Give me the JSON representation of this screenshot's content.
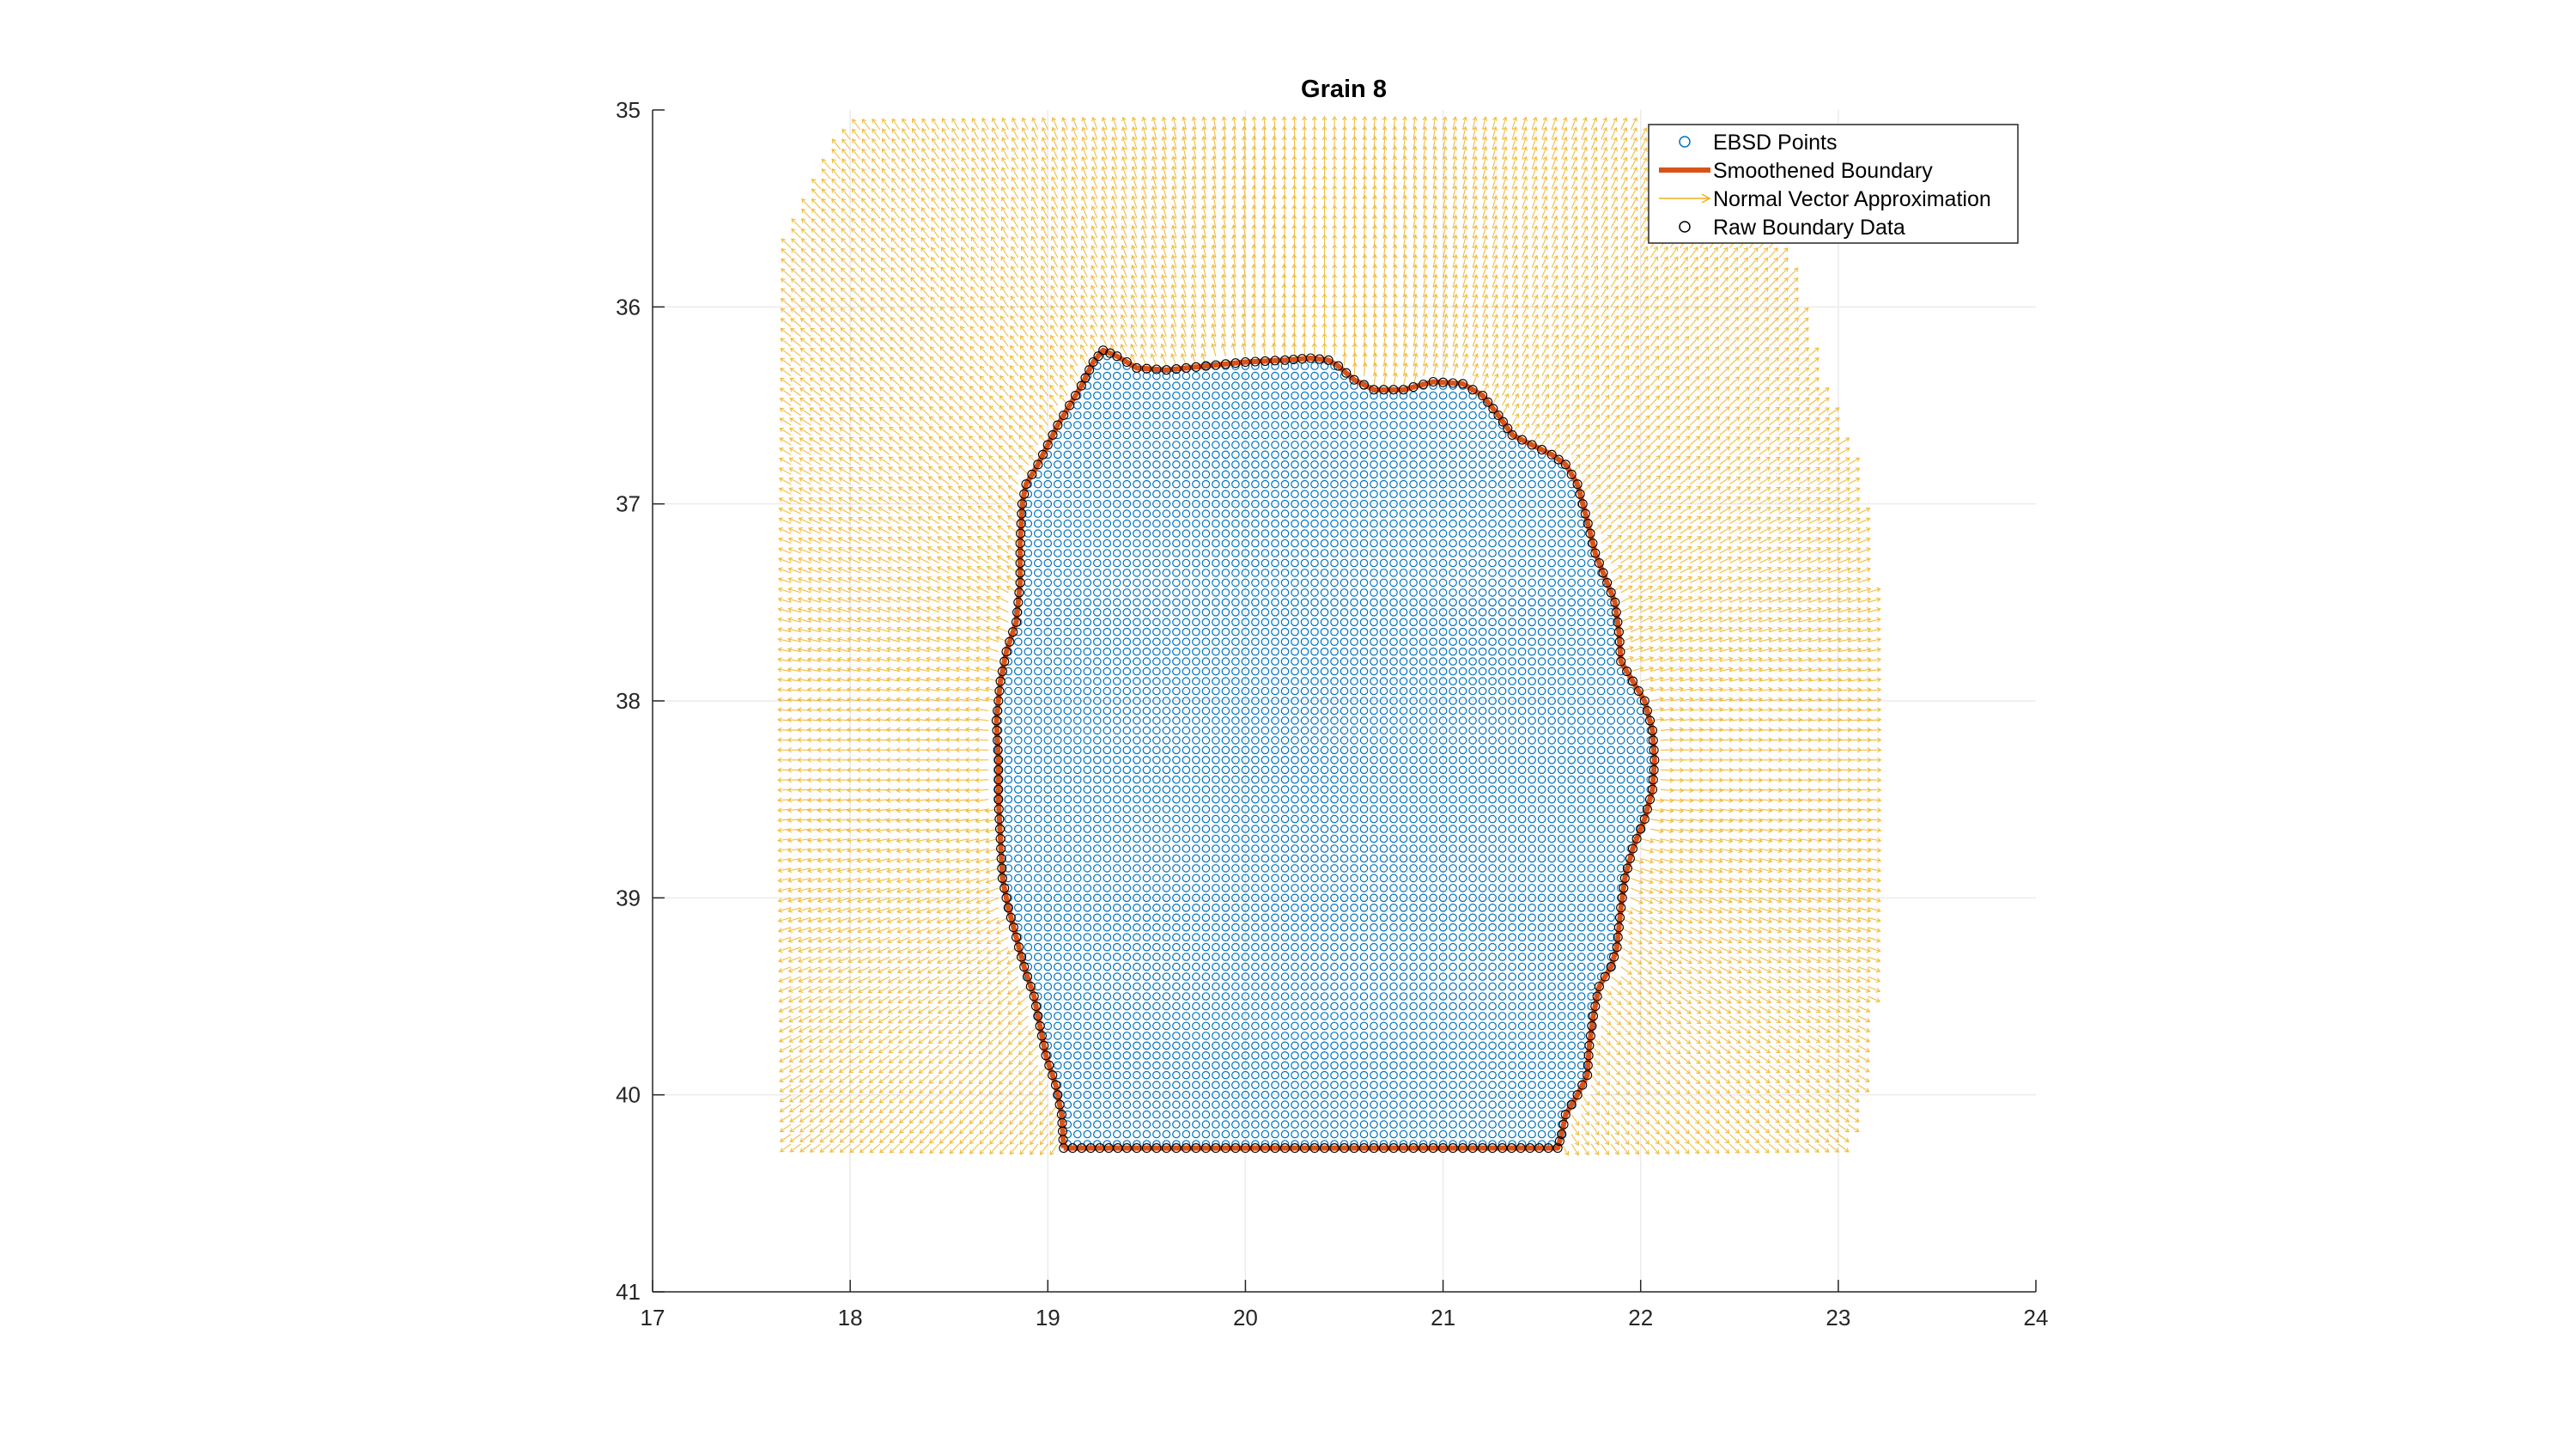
{
  "chart_data": {
    "type": "scatter",
    "title": "Grain 8",
    "xlabel": "",
    "ylabel": "",
    "xlim": [
      17,
      24
    ],
    "ylim": [
      35,
      41
    ],
    "y_reversed": true,
    "x_ticks": [
      17,
      18,
      19,
      20,
      21,
      22,
      23,
      24
    ],
    "y_ticks": [
      35,
      36,
      37,
      38,
      39,
      40,
      41
    ],
    "grid": true,
    "legend_position": "top-right",
    "grid_step": 0.05,
    "colors": {
      "ebsd": "#0072BD",
      "boundary": "#D95319",
      "normals": "#EDB120",
      "raw": "#000000",
      "axis": "#262626",
      "grid": "#ebebeb"
    },
    "series": [
      {
        "name": "EBSD Points",
        "style": "marker-circle",
        "color": "#0072BD",
        "description_region": "all grid points inside the smoothened boundary"
      },
      {
        "name": "Smoothened Boundary",
        "style": "line",
        "color": "#D95319"
      },
      {
        "name": "Normal Vector Approximation",
        "style": "quiver",
        "color": "#EDB120"
      },
      {
        "name": "Raw Boundary Data",
        "style": "marker-circle",
        "color": "#000000"
      }
    ],
    "boundary": [
      [
        19.08,
        40.27
      ],
      [
        19.07,
        40.1
      ],
      [
        19.04,
        39.95
      ],
      [
        18.99,
        39.8
      ],
      [
        18.96,
        39.65
      ],
      [
        18.93,
        39.5
      ],
      [
        18.88,
        39.35
      ],
      [
        18.84,
        39.2
      ],
      [
        18.8,
        39.05
      ],
      [
        18.77,
        38.9
      ],
      [
        18.76,
        38.7
      ],
      [
        18.75,
        38.5
      ],
      [
        18.75,
        38.3
      ],
      [
        18.74,
        38.1
      ],
      [
        18.76,
        37.9
      ],
      [
        18.79,
        37.75
      ],
      [
        18.84,
        37.6
      ],
      [
        18.86,
        37.4
      ],
      [
        18.86,
        37.2
      ],
      [
        18.87,
        37.0
      ],
      [
        18.89,
        36.9
      ],
      [
        18.95,
        36.8
      ],
      [
        19.0,
        36.7
      ],
      [
        19.05,
        36.6
      ],
      [
        19.11,
        36.5
      ],
      [
        19.17,
        36.4
      ],
      [
        19.23,
        36.28
      ],
      [
        19.28,
        36.22
      ],
      [
        19.35,
        36.25
      ],
      [
        19.45,
        36.31
      ],
      [
        19.6,
        36.32
      ],
      [
        19.8,
        36.3
      ],
      [
        20.0,
        36.28
      ],
      [
        20.2,
        36.27
      ],
      [
        20.33,
        36.26
      ],
      [
        20.42,
        36.27
      ],
      [
        20.47,
        36.3
      ],
      [
        20.55,
        36.37
      ],
      [
        20.65,
        36.42
      ],
      [
        20.8,
        36.42
      ],
      [
        20.95,
        36.38
      ],
      [
        21.1,
        36.39
      ],
      [
        21.2,
        36.45
      ],
      [
        21.28,
        36.55
      ],
      [
        21.35,
        36.65
      ],
      [
        21.45,
        36.7
      ],
      [
        21.55,
        36.75
      ],
      [
        21.62,
        36.8
      ],
      [
        21.68,
        36.9
      ],
      [
        21.72,
        37.05
      ],
      [
        21.77,
        37.25
      ],
      [
        21.83,
        37.4
      ],
      [
        21.87,
        37.5
      ],
      [
        21.89,
        37.65
      ],
      [
        21.9,
        37.8
      ],
      [
        21.96,
        37.9
      ],
      [
        22.02,
        38.0
      ],
      [
        22.06,
        38.15
      ],
      [
        22.07,
        38.3
      ],
      [
        22.06,
        38.45
      ],
      [
        22.02,
        38.6
      ],
      [
        21.96,
        38.75
      ],
      [
        21.92,
        38.9
      ],
      [
        21.9,
        39.05
      ],
      [
        21.88,
        39.25
      ],
      [
        21.85,
        39.35
      ],
      [
        21.79,
        39.45
      ],
      [
        21.76,
        39.6
      ],
      [
        21.74,
        39.75
      ],
      [
        21.73,
        39.9
      ],
      [
        21.68,
        40.0
      ],
      [
        21.62,
        40.1
      ],
      [
        21.6,
        40.2
      ],
      [
        21.58,
        40.27
      ],
      [
        21.3,
        40.27
      ],
      [
        20.8,
        40.27
      ],
      [
        20.3,
        40.27
      ],
      [
        19.8,
        40.27
      ],
      [
        19.4,
        40.27
      ],
      [
        19.08,
        40.27
      ]
    ]
  }
}
